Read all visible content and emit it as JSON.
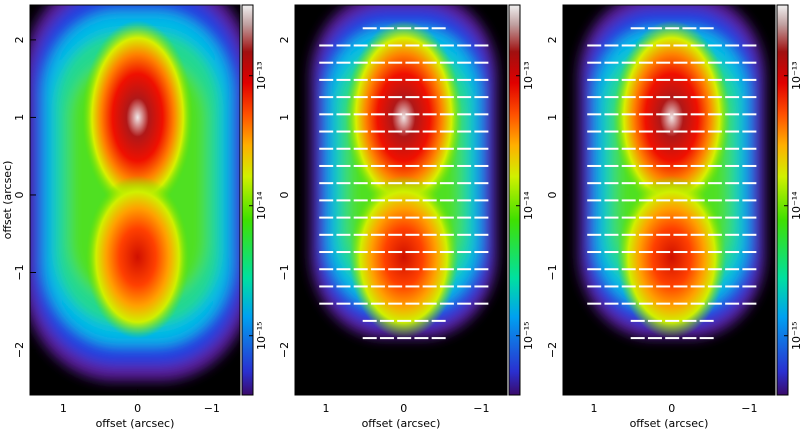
{
  "chart_data": [
    {
      "type": "heatmap",
      "xlabel": "offset (arcsec)",
      "ylabel": "offset (arcsec)",
      "xlim": [
        1.45,
        -1.38
      ],
      "ylim": [
        -2.58,
        2.45
      ],
      "xticks": [
        1,
        0,
        {
          "value": -1,
          "label": "−1"
        }
      ],
      "yticks": [
        {
          "value": -2,
          "label": "−2"
        },
        {
          "value": -1,
          "label": "−1"
        },
        0,
        1,
        2
      ],
      "colorbar": {
        "scale": "log",
        "lim": [
          3.5e-16,
          3.5e-13
        ],
        "ticks": [
          {
            "value": 1e-15,
            "label": "10⁻¹⁵"
          },
          {
            "value": 1e-14,
            "label": "10⁻¹⁴"
          },
          {
            "value": 1e-13,
            "label": "10⁻¹³"
          }
        ]
      },
      "vectors": false
    },
    {
      "type": "heatmap",
      "xlabel": "offset (arcsec)",
      "xlim": [
        1.4,
        -1.33
      ],
      "ylim": [
        -2.58,
        2.45
      ],
      "xticks": [
        1,
        0,
        {
          "value": -1,
          "label": "−1"
        }
      ],
      "yticks": [
        {
          "value": -2,
          "label": "−2"
        },
        {
          "value": -1,
          "label": "−1"
        },
        0,
        1,
        2
      ],
      "colorbar": {
        "scale": "log",
        "lim": [
          3.5e-16,
          3.5e-13
        ],
        "ticks": [
          {
            "value": 1e-15,
            "label": "10⁻¹⁵"
          },
          {
            "value": 1e-14,
            "label": "10⁻¹⁴"
          },
          {
            "value": 1e-13,
            "label": "10⁻¹³"
          }
        ]
      },
      "vectors": true
    },
    {
      "type": "heatmap",
      "xlabel": "offset (arcsec)",
      "xlim": [
        1.4,
        -1.33
      ],
      "ylim": [
        -2.58,
        2.45
      ],
      "xticks": [
        1,
        0,
        {
          "value": -1,
          "label": "−1"
        }
      ],
      "yticks": [
        {
          "value": -2,
          "label": "−2"
        },
        {
          "value": -1,
          "label": "−1"
        },
        0,
        1,
        2
      ],
      "colorbar": {
        "scale": "log",
        "lim": [
          3.5e-16,
          3.5e-13
        ],
        "ticks": [
          {
            "value": 1e-15,
            "label": "10⁻¹⁵"
          },
          {
            "value": 1e-14,
            "label": "10⁻¹⁴"
          },
          {
            "value": 1e-13,
            "label": "10⁻¹³"
          }
        ]
      },
      "vectors": true
    }
  ]
}
